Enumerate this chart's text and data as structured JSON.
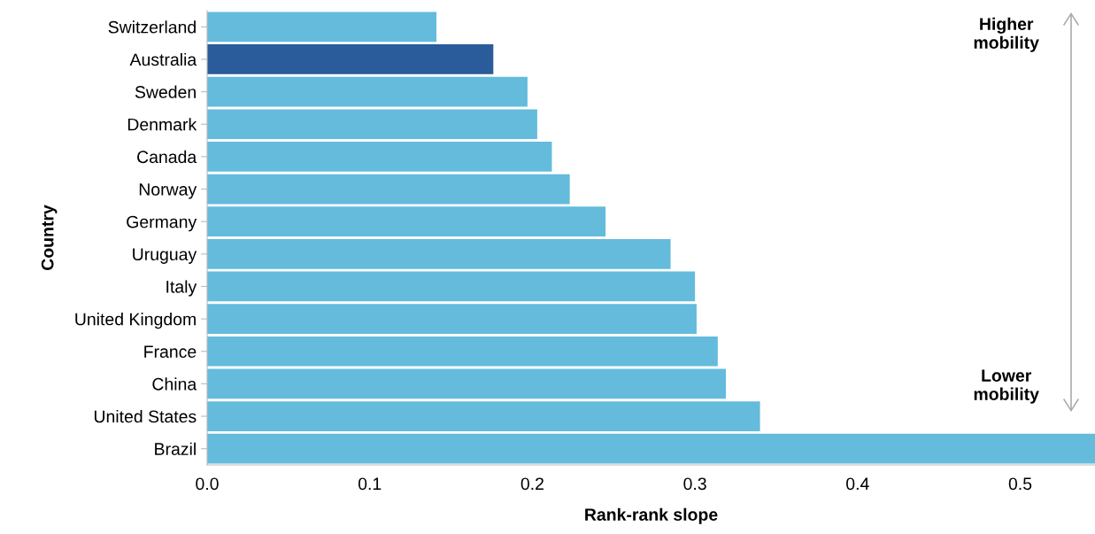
{
  "chart_data": {
    "type": "bar",
    "orientation": "horizontal",
    "xlabel": "Rank-rank slope",
    "ylabel": "Country",
    "categories": [
      "Switzerland",
      "Australia",
      "Sweden",
      "Denmark",
      "Canada",
      "Norway",
      "Germany",
      "Uruguay",
      "Italy",
      "United Kingdom",
      "France",
      "China",
      "United States",
      "Brazil"
    ],
    "values": [
      0.141,
      0.176,
      0.197,
      0.203,
      0.212,
      0.223,
      0.245,
      0.285,
      0.3,
      0.301,
      0.314,
      0.319,
      0.34,
      0.546
    ],
    "colors": [
      "#64bbdc",
      "#2a5b9a",
      "#64bbdc",
      "#64bbdc",
      "#64bbdc",
      "#64bbdc",
      "#64bbdc",
      "#64bbdc",
      "#64bbdc",
      "#64bbdc",
      "#64bbdc",
      "#64bbdc",
      "#64bbdc",
      "#64bbdc"
    ],
    "xlim": [
      0,
      0.546
    ],
    "xticks": [
      {
        "value": 0,
        "label": "0.0"
      },
      0.1,
      0.2,
      0.3,
      0.4,
      0.5
    ],
    "annotations": [
      "Higher\nmobility",
      "Lower\nmobility"
    ],
    "grid": false,
    "legend": false
  }
}
